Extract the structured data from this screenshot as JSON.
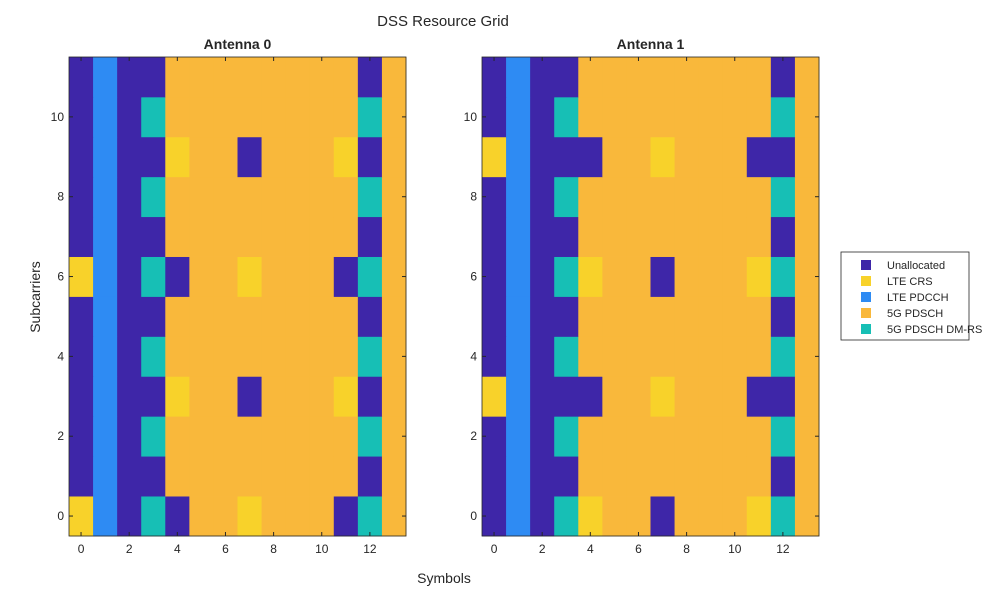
{
  "chart_data": {
    "type": "heatmap",
    "title": "DSS Resource Grid",
    "xlabel": "Symbols",
    "ylabel": "Subcarriers",
    "xlim": [
      -0.5,
      13.5
    ],
    "ylim": [
      -0.5,
      11.5
    ],
    "xticks": [
      "0",
      "2",
      "4",
      "6",
      "8",
      "10",
      "12"
    ],
    "yticks": [
      "0",
      "2",
      "4",
      "6",
      "8",
      "10"
    ],
    "legend_position": "right",
    "categories": [
      {
        "label": "Unallocated",
        "color": "#3e26a8"
      },
      {
        "label": "LTE CRS",
        "color": "#f8d22a"
      },
      {
        "label": "LTE PDCCH",
        "color": "#2e8bf3"
      },
      {
        "label": "5G PDSCH",
        "color": "#f9b83b"
      },
      {
        "label": "5G PDSCH DM-RS",
        "color": "#17bfb5"
      }
    ],
    "panels": [
      {
        "title": "Antenna 0",
        "grid_rows_bottom_to_top": [
          [
            1,
            2,
            0,
            4,
            0,
            3,
            3,
            1,
            3,
            3,
            3,
            0,
            4,
            3
          ],
          [
            0,
            2,
            0,
            0,
            3,
            3,
            3,
            3,
            3,
            3,
            3,
            3,
            0,
            3
          ],
          [
            0,
            2,
            0,
            4,
            3,
            3,
            3,
            3,
            3,
            3,
            3,
            3,
            4,
            3
          ],
          [
            0,
            2,
            0,
            0,
            1,
            3,
            3,
            0,
            3,
            3,
            3,
            1,
            0,
            3
          ],
          [
            0,
            2,
            0,
            4,
            3,
            3,
            3,
            3,
            3,
            3,
            3,
            3,
            4,
            3
          ],
          [
            0,
            2,
            0,
            0,
            3,
            3,
            3,
            3,
            3,
            3,
            3,
            3,
            0,
            3
          ],
          [
            1,
            2,
            0,
            4,
            0,
            3,
            3,
            1,
            3,
            3,
            3,
            0,
            4,
            3
          ],
          [
            0,
            2,
            0,
            0,
            3,
            3,
            3,
            3,
            3,
            3,
            3,
            3,
            0,
            3
          ],
          [
            0,
            2,
            0,
            4,
            3,
            3,
            3,
            3,
            3,
            3,
            3,
            3,
            4,
            3
          ],
          [
            0,
            2,
            0,
            0,
            1,
            3,
            3,
            0,
            3,
            3,
            3,
            1,
            0,
            3
          ],
          [
            0,
            2,
            0,
            4,
            3,
            3,
            3,
            3,
            3,
            3,
            3,
            3,
            4,
            3
          ],
          [
            0,
            2,
            0,
            0,
            3,
            3,
            3,
            3,
            3,
            3,
            3,
            3,
            0,
            3
          ]
        ]
      },
      {
        "title": "Antenna 1",
        "grid_rows_bottom_to_top": [
          [
            0,
            2,
            0,
            4,
            1,
            3,
            3,
            0,
            3,
            3,
            3,
            1,
            4,
            3
          ],
          [
            0,
            2,
            0,
            0,
            3,
            3,
            3,
            3,
            3,
            3,
            3,
            3,
            0,
            3
          ],
          [
            0,
            2,
            0,
            4,
            3,
            3,
            3,
            3,
            3,
            3,
            3,
            3,
            4,
            3
          ],
          [
            1,
            2,
            0,
            0,
            0,
            3,
            3,
            1,
            3,
            3,
            3,
            0,
            0,
            3
          ],
          [
            0,
            2,
            0,
            4,
            3,
            3,
            3,
            3,
            3,
            3,
            3,
            3,
            4,
            3
          ],
          [
            0,
            2,
            0,
            0,
            3,
            3,
            3,
            3,
            3,
            3,
            3,
            3,
            0,
            3
          ],
          [
            0,
            2,
            0,
            4,
            1,
            3,
            3,
            0,
            3,
            3,
            3,
            1,
            4,
            3
          ],
          [
            0,
            2,
            0,
            0,
            3,
            3,
            3,
            3,
            3,
            3,
            3,
            3,
            0,
            3
          ],
          [
            0,
            2,
            0,
            4,
            3,
            3,
            3,
            3,
            3,
            3,
            3,
            3,
            4,
            3
          ],
          [
            1,
            2,
            0,
            0,
            0,
            3,
            3,
            1,
            3,
            3,
            3,
            0,
            0,
            3
          ],
          [
            0,
            2,
            0,
            4,
            3,
            3,
            3,
            3,
            3,
            3,
            3,
            3,
            4,
            3
          ],
          [
            0,
            2,
            0,
            0,
            3,
            3,
            3,
            3,
            3,
            3,
            3,
            3,
            0,
            3
          ]
        ]
      }
    ]
  }
}
